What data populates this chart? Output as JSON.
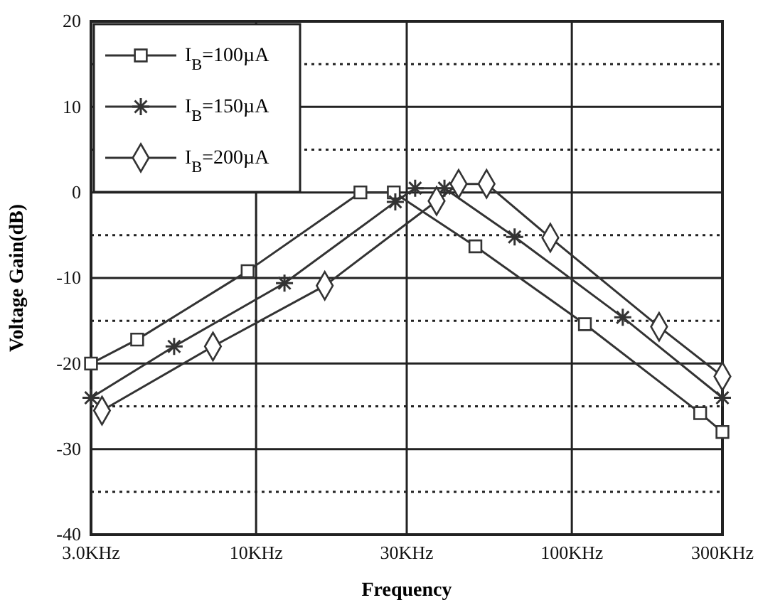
{
  "chart_data": {
    "type": "line",
    "xlabel": "Frequency",
    "ylabel": "Voltage Gain(dB)",
    "log": "x",
    "xlim": [
      3,
      300
    ],
    "xticks": [
      {
        "value": 3,
        "label": "3.0KHz"
      },
      {
        "value": 10,
        "label": "10KHz"
      },
      {
        "value": 30,
        "label": "30KHz"
      },
      {
        "value": 100,
        "label": "100KHz"
      },
      {
        "value": 300,
        "label": "300KHz"
      }
    ],
    "ylim": [
      -40,
      20
    ],
    "yticks": [
      -40,
      {
        "value": -35,
        "label": null
      },
      -30,
      {
        "value": -25,
        "label": null
      },
      -20,
      {
        "value": -15,
        "label": null
      },
      -10,
      {
        "value": -5,
        "label": null
      },
      0,
      {
        "value": 5,
        "label": null
      },
      10,
      {
        "value": 15,
        "label": null
      },
      20
    ],
    "grid": true,
    "legend": "top left",
    "line_style": "solid",
    "series": [
      {
        "name": "I$_{B}$=100µA",
        "color": "#333333",
        "marker": "square",
        "x": [
          3,
          4.2,
          9.4,
          21.4,
          27.3,
          49.5,
          110,
          255,
          300
        ],
        "values": [
          -20,
          -17.2,
          -9.2,
          0,
          0,
          -6.3,
          -15.4,
          -25.8,
          -28
        ]
      },
      {
        "name": "I$_{B}$=150µA",
        "color": "#333333",
        "marker": "cross",
        "x": [
          3,
          5.5,
          12.3,
          27.6,
          31.9,
          39.5,
          65.9,
          145,
          300
        ],
        "values": [
          -24,
          -18,
          -10.6,
          -1.1,
          0.5,
          0.5,
          -5.2,
          -14.6,
          -24
        ]
      },
      {
        "name": "I$_{B}$=200µA",
        "color": "#333333",
        "marker": "diamond",
        "x": [
          3.25,
          7.3,
          16.5,
          37.3,
          43.8,
          53.7,
          85.5,
          189,
          300
        ],
        "values": [
          -25.5,
          -18,
          -10.9,
          -1,
          1,
          1,
          -5.3,
          -15.7,
          -21.5
        ]
      }
    ]
  }
}
